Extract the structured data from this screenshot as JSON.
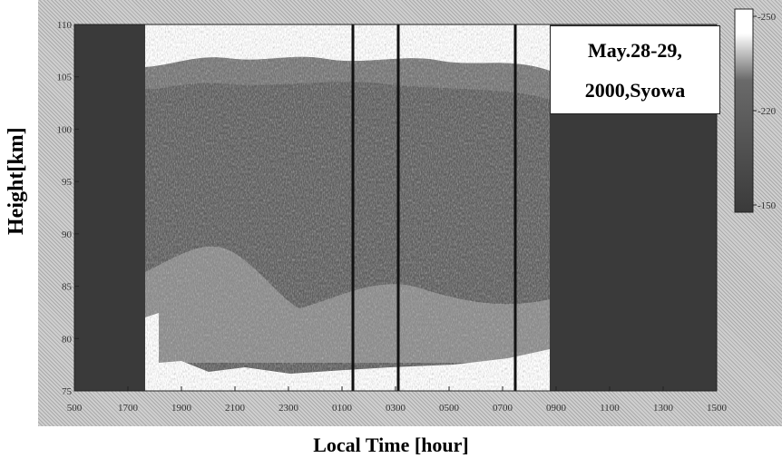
{
  "chart_data": {
    "type": "heatmap",
    "title": "May.28-29, 2000,Syowa",
    "title_lines": [
      "May.28-29,",
      "2000,Syowa"
    ],
    "xlabel": "Local Time [hour]",
    "ylabel": "Height[km]",
    "x_ticks": [
      "500",
      "1700",
      "1900",
      "2100",
      "2300",
      "0100",
      "0300",
      "0500",
      "0700",
      "0900",
      "1100",
      "1300",
      "1500"
    ],
    "y_ticks": [
      75,
      80,
      85,
      90,
      95,
      100,
      105,
      110
    ],
    "ylim": [
      75,
      110
    ],
    "colorbar": {
      "ticks": [
        "-250",
        "-220",
        "-150"
      ],
      "placement": "right"
    },
    "data_gaps": [
      {
        "from": "before 1700",
        "to": "about 1800"
      },
      {
        "from": "about 0900",
        "to": "1500"
      }
    ],
    "vertical_lines_at": [
      "about 0100",
      "about 0200",
      "about 0800"
    ]
  }
}
